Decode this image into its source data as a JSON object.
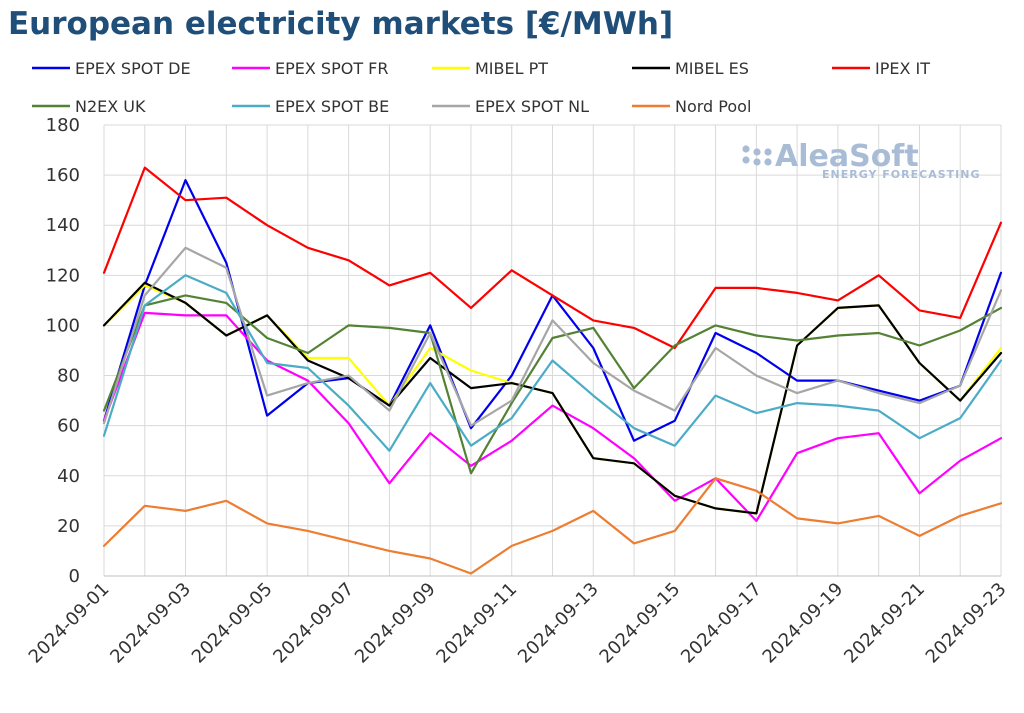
{
  "chart_data": {
    "type": "line",
    "title": "European electricity markets [€/MWh]",
    "xlabel": "",
    "ylabel": "",
    "ylim": [
      0,
      180
    ],
    "yticks": [
      0,
      20,
      40,
      60,
      80,
      100,
      120,
      140,
      160,
      180
    ],
    "grid": true,
    "legend_position": "top",
    "watermark": {
      "name": "AleaSoft",
      "tagline": "ENERGY FORECASTING"
    },
    "x": [
      "2024-09-01",
      "2024-09-02",
      "2024-09-03",
      "2024-09-04",
      "2024-09-05",
      "2024-09-06",
      "2024-09-07",
      "2024-09-08",
      "2024-09-09",
      "2024-09-10",
      "2024-09-11",
      "2024-09-12",
      "2024-09-13",
      "2024-09-14",
      "2024-09-15",
      "2024-09-16",
      "2024-09-17",
      "2024-09-18",
      "2024-09-19",
      "2024-09-20",
      "2024-09-21",
      "2024-09-22",
      "2024-09-23"
    ],
    "x_tick_labels": [
      "2024-09-01",
      "2024-09-03",
      "2024-09-05",
      "2024-09-07",
      "2024-09-09",
      "2024-09-11",
      "2024-09-13",
      "2024-09-15",
      "2024-09-17",
      "2024-09-19",
      "2024-09-21",
      "2024-09-23"
    ],
    "series": [
      {
        "name": "EPEX SPOT DE",
        "color": "#0000ee",
        "values": [
          62,
          116,
          158,
          125,
          64,
          77,
          79,
          68,
          100,
          59,
          80,
          112,
          91,
          54,
          62,
          97,
          89,
          78,
          78,
          74,
          70,
          76,
          121
        ]
      },
      {
        "name": "EPEX SPOT FR",
        "color": "#ff00ff",
        "values": [
          62,
          105,
          104,
          104,
          86,
          78,
          61,
          37,
          57,
          44,
          54,
          68,
          59,
          47,
          30,
          39,
          22,
          49,
          55,
          57,
          33,
          46,
          55
        ]
      },
      {
        "name": "MIBEL PT",
        "color": "#ffff00",
        "values": [
          100,
          116,
          109,
          96,
          104,
          87,
          87,
          68,
          91,
          82,
          77,
          73,
          47,
          45,
          32,
          27,
          25,
          92,
          107,
          108,
          85,
          70,
          91
        ]
      },
      {
        "name": "MIBEL ES",
        "color": "#000000",
        "values": [
          100,
          117,
          109,
          96,
          104,
          86,
          79,
          68,
          87,
          75,
          77,
          73,
          47,
          45,
          32,
          27,
          25,
          92,
          107,
          108,
          85,
          70,
          89
        ]
      },
      {
        "name": "IPEX IT",
        "color": "#ff0000",
        "values": [
          121,
          163,
          150,
          151,
          140,
          131,
          126,
          116,
          121,
          107,
          122,
          112,
          102,
          99,
          91,
          115,
          115,
          113,
          110,
          120,
          106,
          103,
          141
        ]
      },
      {
        "name": "N2EX UK",
        "color": "#548235",
        "values": [
          66,
          108,
          112,
          109,
          95,
          89,
          100,
          99,
          97,
          41,
          69,
          95,
          99,
          75,
          92,
          100,
          96,
          94,
          96,
          97,
          92,
          98,
          107
        ]
      },
      {
        "name": "EPEX SPOT BE",
        "color": "#4bacc6",
        "values": [
          56,
          108,
          120,
          113,
          85,
          83,
          68,
          50,
          77,
          52,
          63,
          86,
          72,
          59,
          52,
          72,
          65,
          69,
          68,
          66,
          55,
          63,
          86
        ]
      },
      {
        "name": "EPEX SPOT NL",
        "color": "#a6a6a6",
        "values": [
          61,
          112,
          131,
          123,
          72,
          77,
          80,
          66,
          97,
          60,
          70,
          102,
          85,
          74,
          66,
          91,
          80,
          73,
          78,
          73,
          69,
          76,
          114
        ]
      },
      {
        "name": "Nord Pool",
        "color": "#ed7d31",
        "values": [
          12,
          28,
          26,
          30,
          21,
          18,
          14,
          10,
          7,
          1,
          12,
          18,
          26,
          13,
          18,
          39,
          34,
          23,
          21,
          24,
          16,
          24,
          29
        ]
      }
    ]
  }
}
